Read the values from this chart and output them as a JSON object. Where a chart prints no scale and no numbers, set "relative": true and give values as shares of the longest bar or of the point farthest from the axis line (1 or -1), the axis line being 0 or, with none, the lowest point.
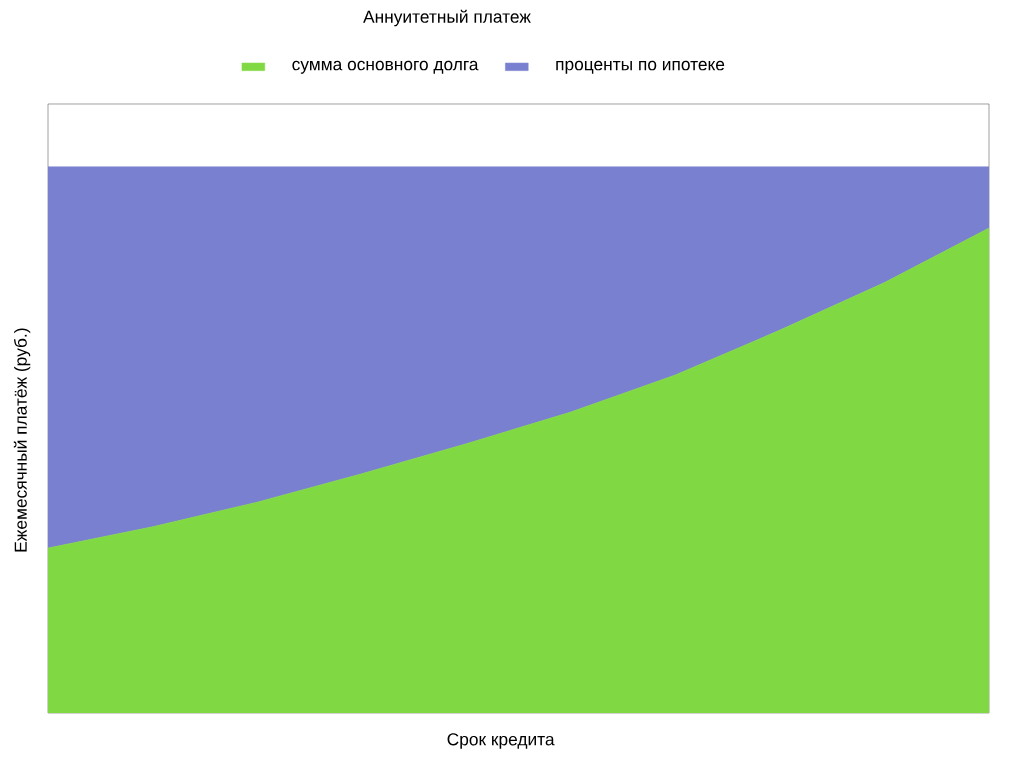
{
  "chart_data": {
    "type": "area",
    "title": "Аннуитетный платеж",
    "xlabel": "Срок кредита",
    "ylabel": "Ежемесячный платёж (руб.)",
    "relative": true,
    "stacked": true,
    "legend": "top",
    "categories": [
      null,
      null,
      null,
      null,
      null,
      null,
      null,
      null,
      null,
      null
    ],
    "series": [
      {
        "name": "сумма основного долга",
        "color": "#80d942",
        "values": [
          0.302,
          0.341,
          0.386,
          0.438,
          0.493,
          0.551,
          0.619,
          0.701,
          0.788,
          0.888
        ]
      },
      {
        "name": "проценты по ипотеке",
        "color": "#7a80d0",
        "values": [
          0.698,
          0.659,
          0.614,
          0.562,
          0.507,
          0.449,
          0.381,
          0.299,
          0.212,
          0.112
        ]
      }
    ]
  }
}
